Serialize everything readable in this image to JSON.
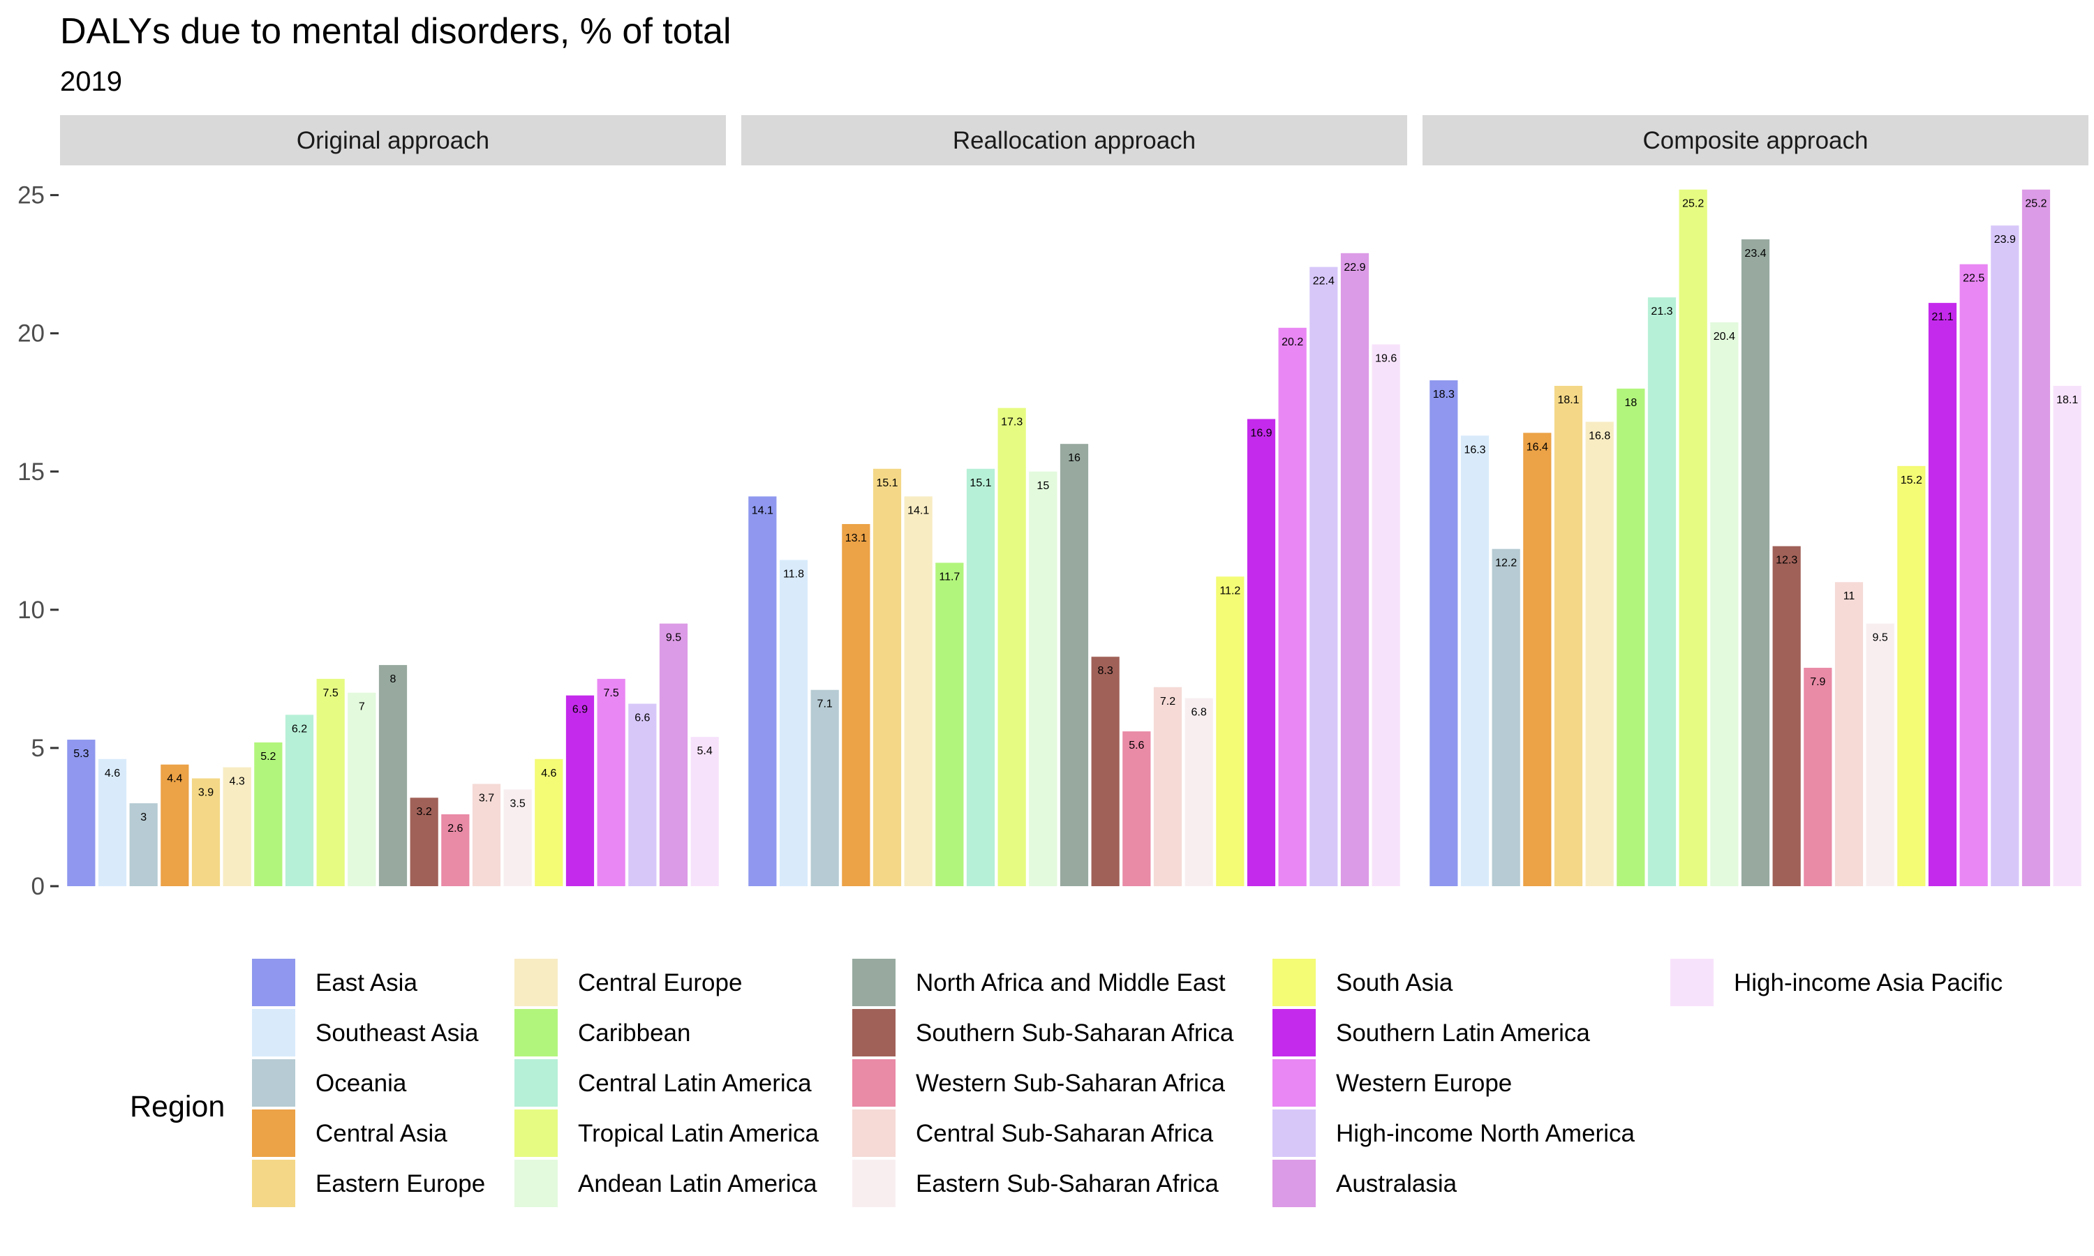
{
  "title": "DALYs due to mental disorders, % of total",
  "subtitle": "2019",
  "chart_data": {
    "type": "bar",
    "title": "DALYs due to mental disorders, % of total",
    "subtitle": "2019",
    "ylim": [
      0,
      26
    ],
    "y_ticks": [
      0,
      5,
      10,
      15,
      20,
      25
    ],
    "y_tick_labels": [
      "0",
      "5",
      "10",
      "15",
      "20",
      "25"
    ],
    "grid": false,
    "legend_title": "Region",
    "legend_position": "bottom",
    "regions": [
      {
        "name": "East Asia",
        "color": "#8f98ee"
      },
      {
        "name": "Southeast Asia",
        "color": "#d9ebfb"
      },
      {
        "name": "Oceania",
        "color": "#b6cbd3"
      },
      {
        "name": "Central Asia",
        "color": "#eca246"
      },
      {
        "name": "Eastern Europe",
        "color": "#f4d887"
      },
      {
        "name": "Central Europe",
        "color": "#f8ecc3"
      },
      {
        "name": "Caribbean",
        "color": "#b2f57c"
      },
      {
        "name": "Central Latin America",
        "color": "#b6f0d7"
      },
      {
        "name": "Tropical Latin America",
        "color": "#e6fb82"
      },
      {
        "name": "Andean Latin America",
        "color": "#e3fadd"
      },
      {
        "name": "North Africa and Middle East",
        "color": "#98aaa0"
      },
      {
        "name": "Southern Sub-Saharan Africa",
        "color": "#a06158"
      },
      {
        "name": "Western Sub-Saharan Africa",
        "color": "#e98aa6"
      },
      {
        "name": "Central Sub-Saharan Africa",
        "color": "#f5dad6"
      },
      {
        "name": "Eastern Sub-Saharan Africa",
        "color": "#f8eef0"
      },
      {
        "name": "South Asia",
        "color": "#f4fb75"
      },
      {
        "name": "Southern Latin America",
        "color": "#c42aec"
      },
      {
        "name": "Western Europe",
        "color": "#e987f4"
      },
      {
        "name": "High-income North America",
        "color": "#d7c7f9"
      },
      {
        "name": "Australasia",
        "color": "#dc9be6"
      },
      {
        "name": "High-income Asia Pacific",
        "color": "#f7e2fb"
      }
    ],
    "panels": [
      {
        "name": "Original approach",
        "values": [
          5.3,
          4.6,
          3,
          4.4,
          3.9,
          4.3,
          5.2,
          6.2,
          7.5,
          7,
          8,
          3.2,
          2.6,
          3.7,
          3.5,
          4.6,
          6.9,
          7.5,
          6.6,
          9.5,
          5.4
        ]
      },
      {
        "name": "Reallocation approach",
        "values": [
          14.1,
          11.8,
          7.1,
          13.1,
          15.1,
          14.1,
          11.7,
          15.1,
          17.3,
          15,
          16,
          8.3,
          5.6,
          7.2,
          6.8,
          11.2,
          16.9,
          20.2,
          22.4,
          22.9,
          19.6
        ]
      },
      {
        "name": "Composite approach",
        "values": [
          18.3,
          16.3,
          12.2,
          16.4,
          18.1,
          16.8,
          18,
          21.3,
          25.2,
          20.4,
          23.4,
          12.3,
          7.9,
          11,
          9.5,
          15.2,
          21.1,
          22.5,
          23.9,
          25.2,
          18.1
        ]
      }
    ]
  }
}
